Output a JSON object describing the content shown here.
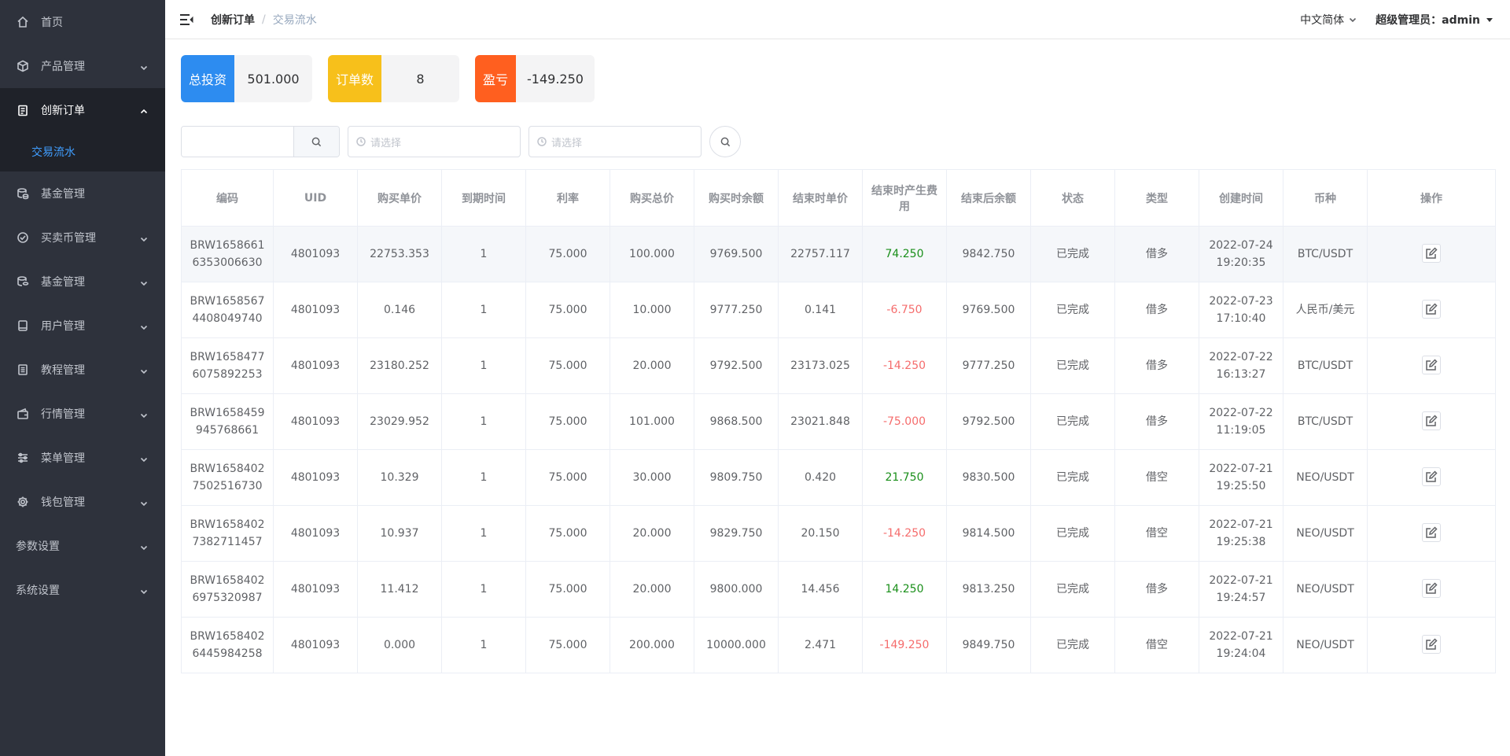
{
  "sidebar": {
    "items": [
      {
        "label": "首页",
        "icon": "home-icon",
        "chevron": false
      },
      {
        "label": "产品管理",
        "icon": "cube-icon",
        "chevron": true
      },
      {
        "label": "创新订单",
        "icon": "clipboard-icon",
        "chevron": true,
        "expanded": true
      },
      {
        "label": "基金管理",
        "icon": "coins-icon",
        "chevron": false
      },
      {
        "label": "买卖币管理",
        "icon": "check-circle-icon",
        "chevron": true
      },
      {
        "label": "基金管理",
        "icon": "coins-icon",
        "chevron": true
      },
      {
        "label": "用户管理",
        "icon": "tablet-icon",
        "chevron": true
      },
      {
        "label": "教程管理",
        "icon": "document-icon",
        "chevron": true
      },
      {
        "label": "行情管理",
        "icon": "wallet-icon",
        "chevron": true
      },
      {
        "label": "菜单管理",
        "icon": "sliders-icon",
        "chevron": true
      },
      {
        "label": "钱包管理",
        "icon": "gear-icon",
        "chevron": true
      },
      {
        "label": "参数设置",
        "icon": "",
        "chevron": true
      },
      {
        "label": "系统设置",
        "icon": "",
        "chevron": true
      }
    ],
    "sub_item": "交易流水"
  },
  "header": {
    "breadcrumb_parent": "创新订单",
    "breadcrumb_sep": "/",
    "breadcrumb_current": "交易流水",
    "language": "中文简体",
    "user": "超级管理员：admin"
  },
  "stats": [
    {
      "label": "总投资",
      "value": "501.000",
      "color": "#2d8cf0"
    },
    {
      "label": "订单数",
      "value": "8",
      "color": "#f7c01b"
    },
    {
      "label": "盈亏",
      "value": "-149.250",
      "color": "#ff5f1f"
    }
  ],
  "filters": {
    "search_value": "",
    "date_start_placeholder": "请选择",
    "date_end_placeholder": "请选择"
  },
  "table": {
    "columns": [
      "编码",
      "UID",
      "购买单价",
      "到期时间",
      "利率",
      "购买总价",
      "购买时余额",
      "结束时单价",
      "结束时产生费用",
      "结束后余额",
      "状态",
      "类型",
      "创建时间",
      "币种",
      "操作"
    ],
    "rows": [
      [
        "BRW16586616353006630",
        "4801093",
        "22753.353",
        "1",
        "75.000",
        "100.000",
        "9769.500",
        "22757.117",
        "74.250",
        "9842.750",
        "已完成",
        "借多",
        "2022-07-24 19:20:35",
        "BTC/USDT"
      ],
      [
        "BRW16585674408049740",
        "4801093",
        "0.146",
        "1",
        "75.000",
        "10.000",
        "9777.250",
        "0.141",
        "-6.750",
        "9769.500",
        "已完成",
        "借多",
        "2022-07-23 17:10:40",
        "人民币/美元"
      ],
      [
        "BRW16584776075892253",
        "4801093",
        "23180.252",
        "1",
        "75.000",
        "20.000",
        "9792.500",
        "23173.025",
        "-14.250",
        "9777.250",
        "已完成",
        "借多",
        "2022-07-22 16:13:27",
        "BTC/USDT"
      ],
      [
        "BRW1658459945768661",
        "4801093",
        "23029.952",
        "1",
        "75.000",
        "101.000",
        "9868.500",
        "23021.848",
        "-75.000",
        "9792.500",
        "已完成",
        "借多",
        "2022-07-22 11:19:05",
        "BTC/USDT"
      ],
      [
        "BRW16584027502516730",
        "4801093",
        "10.329",
        "1",
        "75.000",
        "30.000",
        "9809.750",
        "0.420",
        "21.750",
        "9830.500",
        "已完成",
        "借空",
        "2022-07-21 19:25:50",
        "NEO/USDT"
      ],
      [
        "BRW16584027382711457",
        "4801093",
        "10.937",
        "1",
        "75.000",
        "20.000",
        "9829.750",
        "20.150",
        "-14.250",
        "9814.500",
        "已完成",
        "借空",
        "2022-07-21 19:25:38",
        "NEO/USDT"
      ],
      [
        "BRW16584026975320987",
        "4801093",
        "11.412",
        "1",
        "75.000",
        "20.000",
        "9800.000",
        "14.456",
        "14.250",
        "9813.250",
        "已完成",
        "借多",
        "2022-07-21 19:24:57",
        "NEO/USDT"
      ],
      [
        "BRW16584026445984258",
        "4801093",
        "0.000",
        "1",
        "75.000",
        "200.000",
        "10000.000",
        "2.471",
        "-149.250",
        "9849.750",
        "已完成",
        "借空",
        "2022-07-21 19:24:04",
        "NEO/USDT"
      ]
    ]
  },
  "colors": {
    "sidebar_bg": "#2e323c",
    "accent": "#409eff",
    "profit": "#1a8f1a",
    "loss": "#f56c6c"
  }
}
